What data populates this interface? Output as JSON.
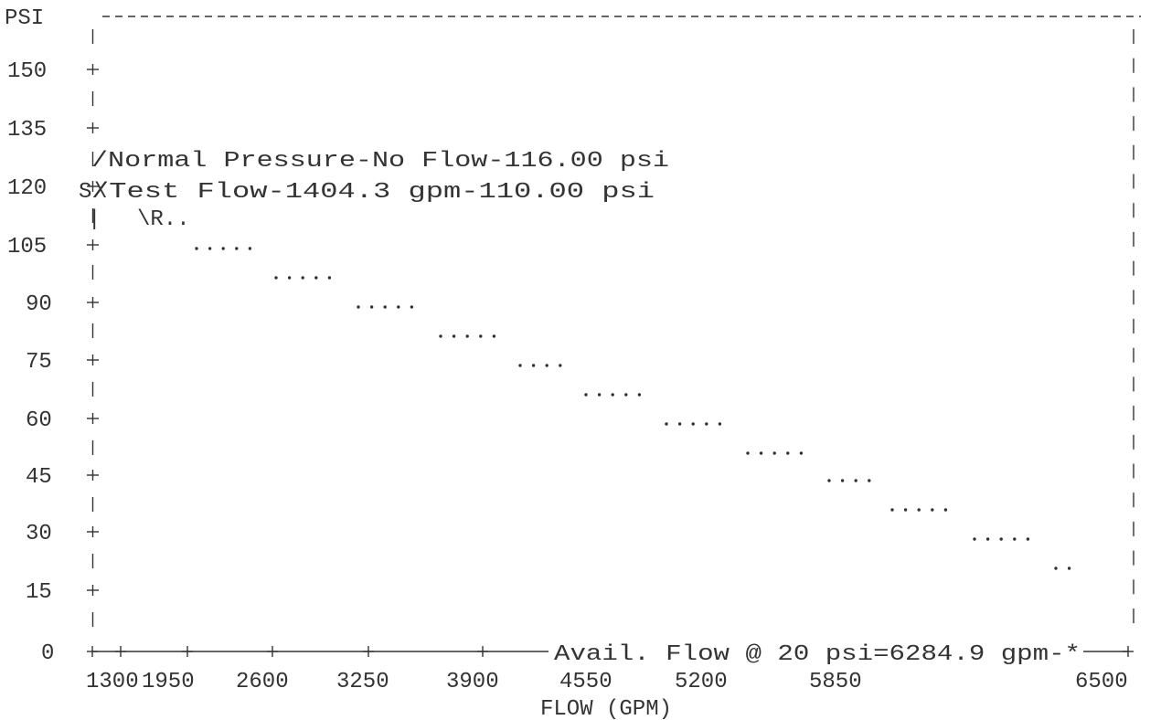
{
  "chart_data": {
    "type": "line",
    "ylabel": "PSI",
    "xlabel": "FLOW (GPM)",
    "y_ticks": [
      "150",
      "135",
      "120",
      "105",
      "90",
      "75",
      "60",
      "45",
      "30",
      "15",
      "0"
    ],
    "x_ticks": [
      "1300",
      "1950",
      "2600",
      "3250",
      "3900",
      "4550",
      "5200",
      "5850",
      "6500"
    ],
    "xlim": [
      1300,
      6500
    ],
    "ylim": [
      0,
      150
    ],
    "annotations": {
      "static": "/Normal Pressure-No Flow-116.00 psi",
      "residual": "/Test Flow-1404.3 gpm-110.00 psi",
      "available": "Avail. Flow @ 20 psi=6284.9 gpm-*"
    },
    "markers": {
      "static": "S",
      "residual": "R"
    },
    "curve": [
      {
        "x": 1300,
        "y": 116
      },
      {
        "x": 1404.3,
        "y": 110
      },
      {
        "x": 1560,
        "y": 108
      },
      {
        "x": 1950,
        "y": 103
      },
      {
        "x": 2600,
        "y": 95
      },
      {
        "x": 3250,
        "y": 87
      },
      {
        "x": 3900,
        "y": 79
      },
      {
        "x": 4550,
        "y": 70
      },
      {
        "x": 5200,
        "y": 60
      },
      {
        "x": 5850,
        "y": 48
      },
      {
        "x": 6284.9,
        "y": 20
      }
    ],
    "dot_rows": [
      {
        "row": 104,
        "dots": 5
      },
      {
        "row": 96,
        "dots": 5
      },
      {
        "row": 88,
        "dots": 5
      },
      {
        "row": 80,
        "dots": 5
      },
      {
        "row": 72,
        "dots": 4
      },
      {
        "row": 64,
        "dots": 5
      },
      {
        "row": 56,
        "dots": 5
      },
      {
        "row": 48,
        "dots": 5
      },
      {
        "row": 40,
        "dots": 4
      },
      {
        "row": 32,
        "dots": 5
      },
      {
        "row": 24,
        "dots": 5
      },
      {
        "row": 16,
        "dots": 2
      }
    ]
  }
}
